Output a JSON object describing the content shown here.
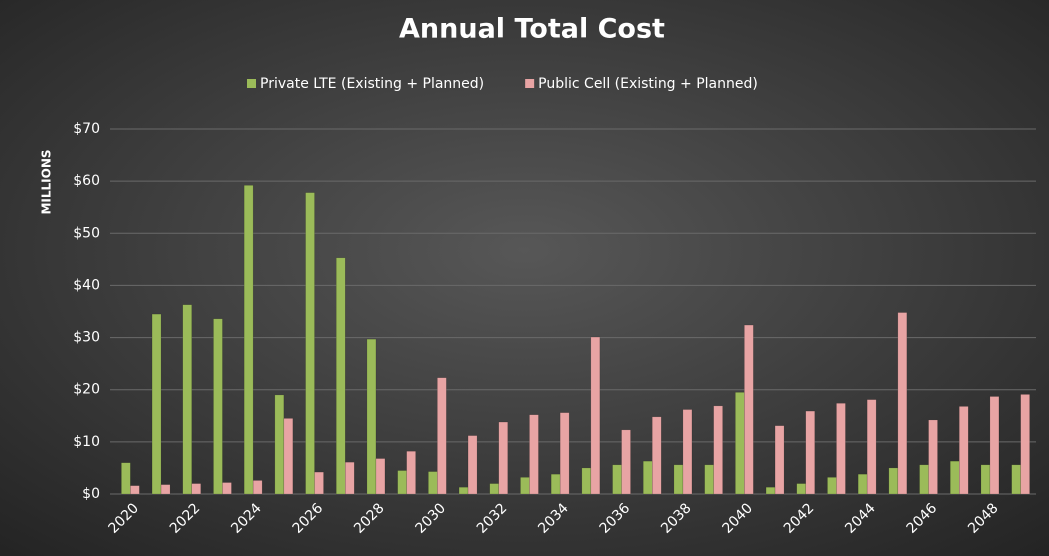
{
  "chart_data": {
    "type": "bar",
    "title": "Annual Total Cost",
    "y_label": "MILLIONS",
    "categories": [
      "2020",
      null,
      "2022",
      null,
      "2024",
      null,
      "2026",
      null,
      "2028",
      null,
      "2030",
      null,
      "2032",
      null,
      "2034",
      null,
      "2036",
      null,
      "2038",
      null,
      "2040",
      null,
      "2042",
      null,
      "2044",
      null,
      "2046",
      null,
      "2048",
      null
    ],
    "series": [
      {
        "name": "Private LTE (Existing + Planned)",
        "color": "#9bbb59",
        "values": [
          6,
          34.5,
          36.3,
          33.6,
          59.2,
          19,
          57.8,
          45.3,
          29.7,
          4.5,
          4.3,
          1.3,
          2,
          3.2,
          3.8,
          5,
          5.6,
          6.3,
          5.6,
          5.6,
          19.5,
          1.3,
          2,
          3.2,
          3.8,
          5,
          5.6,
          6.3,
          5.6,
          5.6
        ]
      },
      {
        "name": "Public Cell (Existing + Planned)",
        "color": "#e8a4a4",
        "values": [
          1.6,
          1.8,
          2,
          2.2,
          2.6,
          14.5,
          4.2,
          6.1,
          6.8,
          8.2,
          22.3,
          11.2,
          13.8,
          15.2,
          15.6,
          30.1,
          12.3,
          14.8,
          16.2,
          16.9,
          32.4,
          13.1,
          15.9,
          17.4,
          18.1,
          34.8,
          14.2,
          16.8,
          18.7,
          19.1
        ]
      }
    ],
    "ylim": [
      0,
      70
    ],
    "yticks": [
      {
        "value": 0,
        "label": "$0"
      },
      {
        "value": 10,
        "label": "$10"
      },
      {
        "value": 20,
        "label": "$20"
      },
      {
        "value": 30,
        "label": "$30"
      },
      {
        "value": 40,
        "label": "$40"
      },
      {
        "value": 50,
        "label": "$50"
      },
      {
        "value": 60,
        "label": "$60"
      },
      {
        "value": 70,
        "label": "$70"
      }
    ],
    "grid": true,
    "legend": "top"
  }
}
